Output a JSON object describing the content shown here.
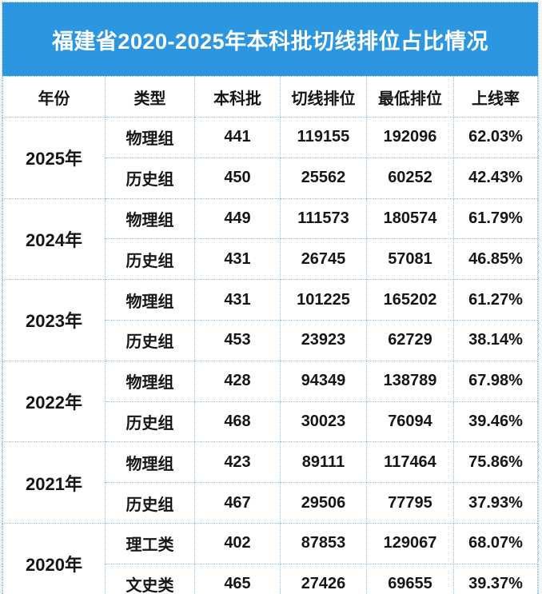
{
  "chart_data": {
    "type": "table",
    "title": "福建省2020-2025年本科批切线排位占比情况",
    "columns": [
      "年份",
      "类型",
      "本科批",
      "切线排位",
      "最低排位",
      "上线率"
    ],
    "groups": [
      {
        "year": "2025年",
        "rows": [
          [
            "物理组",
            "441",
            "119155",
            "192096",
            "62.03%"
          ],
          [
            "历史组",
            "450",
            "25562",
            "60252",
            "42.43%"
          ]
        ]
      },
      {
        "year": "2024年",
        "rows": [
          [
            "物理组",
            "449",
            "111573",
            "180574",
            "61.79%"
          ],
          [
            "历史组",
            "431",
            "26745",
            "57081",
            "46.85%"
          ]
        ]
      },
      {
        "year": "2023年",
        "rows": [
          [
            "物理组",
            "431",
            "101225",
            "165202",
            "61.27%"
          ],
          [
            "历史组",
            "453",
            "23923",
            "62729",
            "38.14%"
          ]
        ]
      },
      {
        "year": "2022年",
        "rows": [
          [
            "物理组",
            "428",
            "94349",
            "138789",
            "67.98%"
          ],
          [
            "历史组",
            "468",
            "30023",
            "76094",
            "39.46%"
          ]
        ]
      },
      {
        "year": "2021年",
        "rows": [
          [
            "物理组",
            "423",
            "89111",
            "117464",
            "75.86%"
          ],
          [
            "历史组",
            "467",
            "29506",
            "77795",
            "37.93%"
          ]
        ]
      },
      {
        "year": "2020年",
        "rows": [
          [
            "理工类",
            "402",
            "87853",
            "129067",
            "68.07%"
          ],
          [
            "文史类",
            "465",
            "27426",
            "69655",
            "39.37%"
          ]
        ]
      }
    ]
  },
  "colors": {
    "banner_bg": "#2d96e0",
    "title_text": "#ffffff",
    "border": "#8fc1e6",
    "cell_text": "#161616",
    "cell_bg": "#ffffff"
  }
}
